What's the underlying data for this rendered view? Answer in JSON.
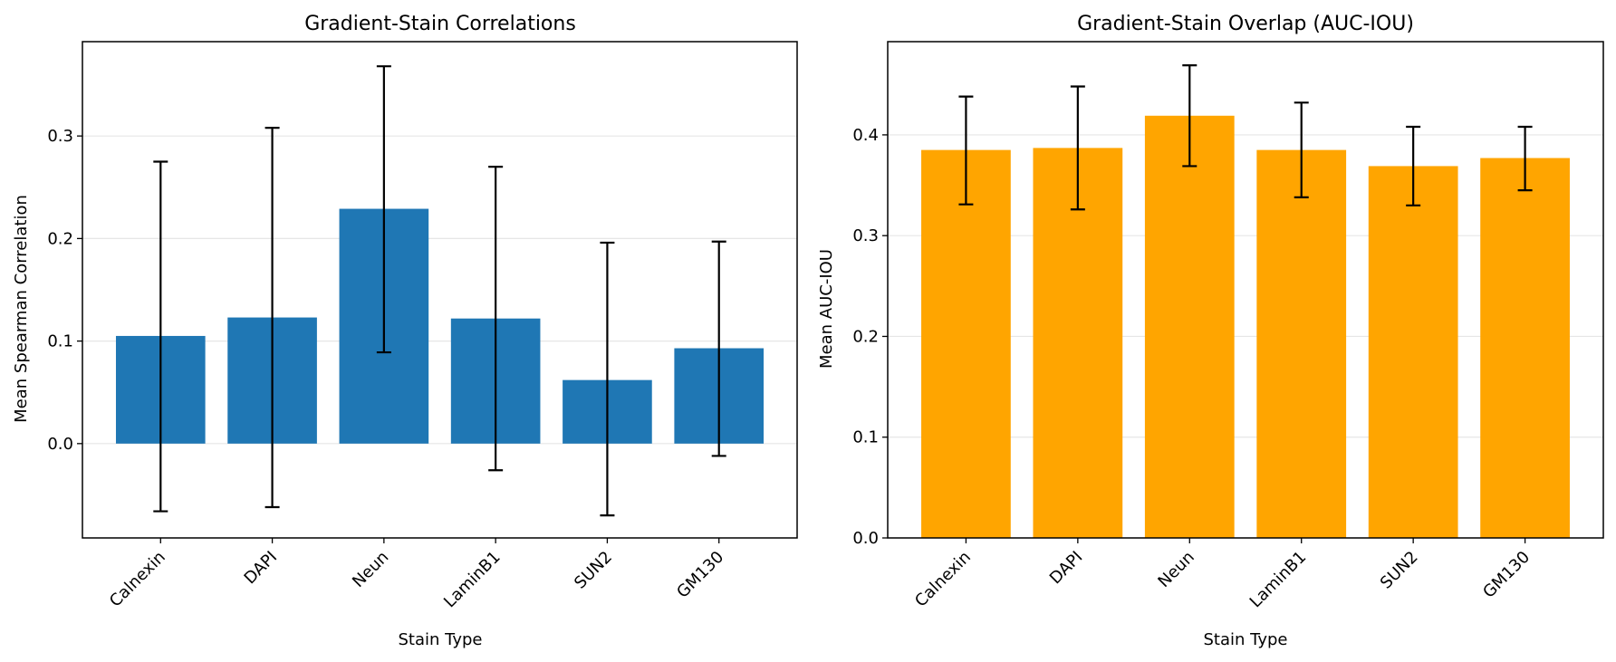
{
  "chart_data": [
    {
      "type": "bar",
      "title": "Gradient-Stain Correlations",
      "xlabel": "Stain Type",
      "ylabel": "Mean Spearman Correlation",
      "categories": [
        "Calnexin",
        "DAPI",
        "Neun",
        "LaminB1",
        "SUN2",
        "GM130"
      ],
      "values": [
        0.105,
        0.123,
        0.229,
        0.122,
        0.062,
        0.093
      ],
      "error_bars": [
        {
          "low": -0.066,
          "high": 0.275
        },
        {
          "low": -0.062,
          "high": 0.308
        },
        {
          "low": 0.089,
          "high": 0.368
        },
        {
          "low": -0.026,
          "high": 0.27
        },
        {
          "low": -0.07,
          "high": 0.196
        },
        {
          "low": -0.012,
          "high": 0.197
        }
      ],
      "ylim": [
        -0.092,
        0.392
      ],
      "yticks": [
        0.0,
        0.1,
        0.2,
        0.3
      ],
      "ytick_labels": [
        "0.0",
        "0.1",
        "0.2",
        "0.3"
      ],
      "bar_color": "#1f77b4",
      "grid": "horizontal"
    },
    {
      "type": "bar",
      "title": "Gradient-Stain Overlap (AUC-IOU)",
      "xlabel": "Stain Type",
      "ylabel": "Mean AUC-IOU",
      "categories": [
        "Calnexin",
        "DAPI",
        "Neun",
        "LaminB1",
        "SUN2",
        "GM130"
      ],
      "values": [
        0.385,
        0.387,
        0.419,
        0.385,
        0.369,
        0.377
      ],
      "error_bars": [
        {
          "low": 0.331,
          "high": 0.438
        },
        {
          "low": 0.326,
          "high": 0.448
        },
        {
          "low": 0.369,
          "high": 0.469
        },
        {
          "low": 0.338,
          "high": 0.432
        },
        {
          "low": 0.33,
          "high": 0.408
        },
        {
          "low": 0.345,
          "high": 0.408
        }
      ],
      "ylim": [
        0.0,
        0.4925
      ],
      "yticks": [
        0.0,
        0.1,
        0.2,
        0.3,
        0.4
      ],
      "ytick_labels": [
        "0.0",
        "0.1",
        "0.2",
        "0.3",
        "0.4"
      ],
      "bar_color": "#ffa500",
      "grid": "horizontal"
    }
  ]
}
